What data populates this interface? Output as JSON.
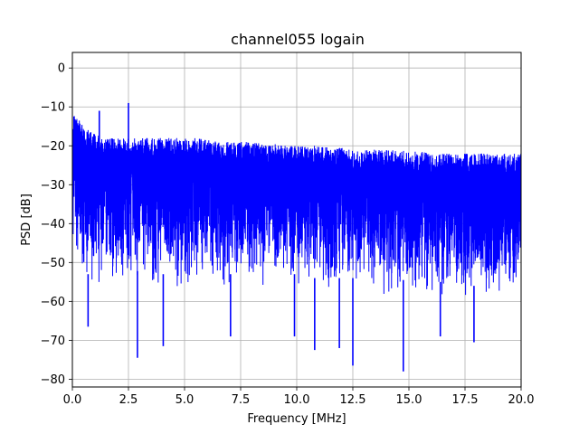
{
  "chart_data": {
    "type": "line",
    "title": "channel055 logain",
    "xlabel": "Frequency [MHz]",
    "ylabel": "PSD [dB]",
    "xlim": [
      0,
      20
    ],
    "ylim": [
      -82,
      4
    ],
    "x_ticks": [
      0.0,
      2.5,
      5.0,
      7.5,
      10.0,
      12.5,
      15.0,
      17.5,
      20.0
    ],
    "x_tick_labels": [
      "0.0",
      "2.5",
      "5.0",
      "7.5",
      "10.0",
      "12.5",
      "15.0",
      "17.5",
      "20.0"
    ],
    "y_ticks": [
      0,
      -10,
      -20,
      -30,
      -40,
      -50,
      -60,
      -70,
      -80
    ],
    "y_tick_labels": [
      "0",
      "−10",
      "−20",
      "−30",
      "−40",
      "−50",
      "−60",
      "−70",
      "−80"
    ],
    "grid": true,
    "line_color": "#0000ff",
    "series": [
      {
        "x": [
          0.0,
          0.5,
          1.0,
          1.5,
          2.0,
          2.5,
          3.0,
          3.5,
          4.0,
          4.5,
          5.0,
          5.5,
          6.0,
          6.5,
          7.0,
          7.5,
          8.0,
          8.5,
          9.0,
          9.5,
          10.0,
          10.5,
          11.0,
          11.5,
          12.0,
          12.5,
          13.0,
          13.5,
          14.0,
          14.5,
          15.0,
          15.5,
          16.0,
          16.5,
          17.0,
          17.5,
          18.0,
          18.5,
          19.0,
          19.5,
          20.0
        ],
        "upper_envelope": [
          -11,
          -15,
          -17,
          -18,
          -18,
          -18,
          -18,
          -18,
          -18,
          -18,
          -18,
          -18,
          -18.5,
          -19,
          -19,
          -19,
          -19,
          -19.5,
          -19.5,
          -20,
          -20,
          -20,
          -20,
          -20.5,
          -20.5,
          -21,
          -21,
          -21,
          -21,
          -21,
          -21.5,
          -21.5,
          -22,
          -22,
          -22,
          -22,
          -22,
          -22,
          -22,
          -22,
          -22
        ],
        "lower_envelope": [
          -47,
          -57,
          -57,
          -57,
          -57,
          -57,
          -56,
          -57,
          -57,
          -57,
          -57,
          -56,
          -56,
          -57,
          -57,
          -57,
          -57,
          -57,
          -57,
          -57,
          -57,
          -58,
          -58,
          -58,
          -58,
          -58,
          -59,
          -59,
          -59,
          -58,
          -59,
          -59,
          -59,
          -59,
          -59,
          -60,
          -60,
          -60,
          -60,
          -60,
          -59
        ],
        "peaks": [
          {
            "x": 1.2,
            "y": -11
          },
          {
            "x": 2.5,
            "y": -9
          }
        ],
        "dips": [
          {
            "x": 0.7,
            "y": -66.5
          },
          {
            "x": 2.9,
            "y": -74.5
          },
          {
            "x": 4.05,
            "y": -71.5
          },
          {
            "x": 7.05,
            "y": -69
          },
          {
            "x": 9.9,
            "y": -69
          },
          {
            "x": 10.8,
            "y": -72.5
          },
          {
            "x": 11.9,
            "y": -72
          },
          {
            "x": 12.5,
            "y": -76.5
          },
          {
            "x": 14.75,
            "y": -78
          },
          {
            "x": 16.4,
            "y": -69
          },
          {
            "x": 17.9,
            "y": -70.5
          }
        ]
      }
    ]
  }
}
